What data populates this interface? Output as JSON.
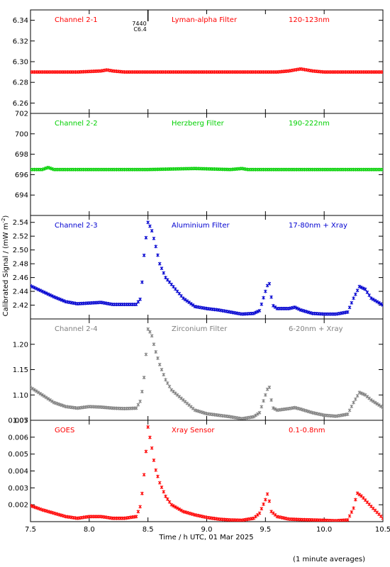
{
  "chart_data": {
    "type": "scatter",
    "xlabel": "Time / h UTC, 01 Mar 2025",
    "ylabel": "Calibrated Signal / (mW m",
    "ylabel_sup": "-2",
    "ylabel_close": ")",
    "footnote": "(1 minute averages)",
    "xlim": [
      7.5,
      10.5
    ],
    "x_ticks": [
      7.5,
      8.0,
      8.5,
      9.0,
      9.5,
      10.0,
      10.5
    ],
    "x_tick_labels": [
      "7.5",
      "8.0",
      "8.5",
      "9.0",
      "9.5",
      "10.0",
      "10.5"
    ],
    "event_marker": {
      "x": 8.5,
      "label_top": "7440",
      "label_bottom": "C6.4"
    },
    "panels": [
      {
        "channel": "Channel 2-1",
        "filter": "Lyman-alpha Filter",
        "band": "120-123nm",
        "color": "#ff0000",
        "ylim": [
          6.25,
          6.35
        ],
        "y_ticks": [
          6.26,
          6.28,
          6.3,
          6.32,
          6.34
        ],
        "y_tick_labels": [
          "6.26",
          "6.28",
          "6.30",
          "6.32",
          "6.34"
        ],
        "series": {
          "x": [
            7.5,
            7.9,
            8.1,
            8.15,
            8.2,
            8.3,
            8.6,
            9.0,
            9.4,
            9.6,
            9.7,
            9.75,
            9.8,
            9.85,
            9.9,
            10.0,
            10.3,
            10.5
          ],
          "y": [
            6.29,
            6.29,
            6.291,
            6.292,
            6.291,
            6.29,
            6.29,
            6.29,
            6.29,
            6.29,
            6.291,
            6.292,
            6.293,
            6.292,
            6.291,
            6.29,
            6.29,
            6.29
          ]
        }
      },
      {
        "channel": "Channel 2-2",
        "filter": "Herzberg Filter",
        "band": "190-222nm",
        "color": "#00d000",
        "ylim": [
          692,
          702
        ],
        "y_ticks": [
          694,
          696,
          698,
          700,
          702
        ],
        "y_tick_labels": [
          "694",
          "696",
          "698",
          "700",
          "702"
        ],
        "series": {
          "x": [
            7.5,
            7.6,
            7.65,
            7.7,
            8.0,
            8.5,
            8.9,
            9.2,
            9.3,
            9.35,
            9.6,
            10.0,
            10.5
          ],
          "y": [
            696.5,
            696.5,
            696.7,
            696.5,
            696.5,
            696.5,
            696.6,
            696.5,
            696.6,
            696.5,
            696.5,
            696.5,
            696.5
          ]
        }
      },
      {
        "channel": "Channel 2-3",
        "filter": "Aluminium Filter",
        "band": "17-80nm + Xray",
        "color": "#0000d0",
        "ylim": [
          2.4,
          2.55
        ],
        "y_ticks": [
          2.42,
          2.44,
          2.46,
          2.48,
          2.5,
          2.52,
          2.54
        ],
        "y_tick_labels": [
          "2.42",
          "2.44",
          "2.46",
          "2.48",
          "2.50",
          "2.52",
          "2.54"
        ],
        "series": {
          "x": [
            7.5,
            7.6,
            7.7,
            7.8,
            7.9,
            8.0,
            8.1,
            8.2,
            8.3,
            8.4,
            8.44,
            8.47,
            8.5,
            8.53,
            8.56,
            8.6,
            8.65,
            8.7,
            8.8,
            8.9,
            9.0,
            9.1,
            9.2,
            9.3,
            9.4,
            9.45,
            9.5,
            9.53,
            9.56,
            9.6,
            9.7,
            9.75,
            9.8,
            9.9,
            10.0,
            10.1,
            10.2,
            10.25,
            10.3,
            10.35,
            10.4,
            10.5
          ],
          "y": [
            2.448,
            2.44,
            2.432,
            2.425,
            2.422,
            2.423,
            2.424,
            2.421,
            2.421,
            2.421,
            2.43,
            2.5,
            2.54,
            2.53,
            2.51,
            2.48,
            2.46,
            2.45,
            2.43,
            2.418,
            2.415,
            2.413,
            2.41,
            2.407,
            2.408,
            2.412,
            2.44,
            2.455,
            2.42,
            2.415,
            2.415,
            2.417,
            2.413,
            2.408,
            2.407,
            2.407,
            2.41,
            2.43,
            2.447,
            2.443,
            2.43,
            2.42
          ]
        }
      },
      {
        "channel": "Channel 2-4",
        "filter": "Zirconium Filter",
        "band": "6-20nm + Xray",
        "color": "#808080",
        "ylim": [
          1.05,
          1.25
        ],
        "y_ticks": [
          1.05,
          1.1,
          1.15,
          1.2
        ],
        "y_tick_labels": [
          "1.05",
          "1.10",
          "1.15",
          "1.20"
        ],
        "series": {
          "x": [
            7.5,
            7.6,
            7.7,
            7.8,
            7.9,
            8.0,
            8.1,
            8.2,
            8.3,
            8.4,
            8.44,
            8.47,
            8.5,
            8.53,
            8.56,
            8.6,
            8.65,
            8.7,
            8.8,
            8.9,
            9.0,
            9.1,
            9.2,
            9.3,
            9.4,
            9.45,
            9.5,
            9.53,
            9.56,
            9.6,
            9.7,
            9.75,
            9.8,
            9.9,
            10.0,
            10.1,
            10.2,
            10.25,
            10.3,
            10.35,
            10.4,
            10.5
          ],
          "y": [
            1.115,
            1.1,
            1.085,
            1.077,
            1.074,
            1.077,
            1.076,
            1.074,
            1.073,
            1.074,
            1.09,
            1.14,
            1.23,
            1.22,
            1.19,
            1.16,
            1.13,
            1.11,
            1.09,
            1.07,
            1.063,
            1.06,
            1.057,
            1.053,
            1.057,
            1.065,
            1.1,
            1.12,
            1.075,
            1.07,
            1.073,
            1.075,
            1.072,
            1.065,
            1.06,
            1.058,
            1.062,
            1.085,
            1.105,
            1.1,
            1.09,
            1.075
          ]
        }
      },
      {
        "channel": "GOES",
        "filter": "Xray Sensor",
        "band": "0.1-0.8nm",
        "color": "#ff0000",
        "ylim": [
          0.001,
          0.007
        ],
        "y_ticks": [
          0.002,
          0.003,
          0.004,
          0.005,
          0.006,
          0.007
        ],
        "y_tick_labels": [
          "0.002",
          "0.003",
          "0.004",
          "0.005",
          "0.006",
          "0.007"
        ],
        "series": {
          "x": [
            7.5,
            7.6,
            7.7,
            7.8,
            7.9,
            8.0,
            8.1,
            8.2,
            8.3,
            8.4,
            8.44,
            8.47,
            8.5,
            8.53,
            8.56,
            8.6,
            8.65,
            8.7,
            8.8,
            8.9,
            9.0,
            9.1,
            9.2,
            9.3,
            9.4,
            9.45,
            9.5,
            9.52,
            9.55,
            9.6,
            9.7,
            9.8,
            9.9,
            10.0,
            10.1,
            10.2,
            10.25,
            10.28,
            10.32,
            10.4,
            10.5
          ],
          "y": [
            0.00195,
            0.0017,
            0.0015,
            0.0013,
            0.0012,
            0.0013,
            0.0013,
            0.0012,
            0.0012,
            0.0013,
            0.002,
            0.004,
            0.0066,
            0.0055,
            0.0042,
            0.0033,
            0.0025,
            0.002,
            0.0016,
            0.0014,
            0.00125,
            0.00115,
            0.0011,
            0.00108,
            0.0012,
            0.0015,
            0.0023,
            0.0027,
            0.0016,
            0.0013,
            0.00115,
            0.00112,
            0.0011,
            0.00108,
            0.00105,
            0.0011,
            0.0018,
            0.0027,
            0.0025,
            0.0019,
            0.0012
          ]
        }
      }
    ]
  }
}
